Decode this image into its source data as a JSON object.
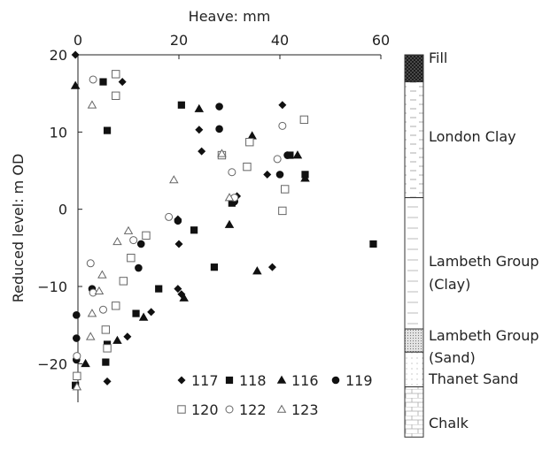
{
  "chart_data": {
    "type": "scatter",
    "xlabel": "Heave: mm",
    "ylabel": "Reduced level: m OD",
    "xlim": [
      0,
      60
    ],
    "ylim": [
      -25,
      20
    ],
    "x_ticks": [
      0,
      20,
      40,
      60
    ],
    "y_ticks": [
      20,
      10,
      0,
      -10,
      -20
    ],
    "x_tick_labels": [
      "0",
      "20",
      "40",
      "60"
    ],
    "y_tick_labels": [
      "20",
      "10",
      "0",
      "−10",
      "−20"
    ],
    "legend_position": "bottom-right",
    "series": [
      {
        "name": "117",
        "marker": "diamond-filled",
        "points": [
          [
            -0.5,
            20
          ],
          [
            5.8,
            -22.3
          ],
          [
            9.8,
            -16.5
          ],
          [
            14.5,
            -13.3
          ],
          [
            19.8,
            -10.3
          ],
          [
            20.5,
            -11.0
          ],
          [
            20.0,
            -4.5
          ],
          [
            19.8,
            -1.3
          ],
          [
            24.5,
            7.5
          ],
          [
            24.0,
            10.3
          ],
          [
            31.5,
            1.7
          ],
          [
            37.5,
            4.5
          ],
          [
            38.5,
            -7.5
          ],
          [
            40.5,
            13.5
          ],
          [
            8.8,
            16.5
          ]
        ]
      },
      {
        "name": "118",
        "marker": "square-filled",
        "points": [
          [
            -0.5,
            -22.8
          ],
          [
            5.5,
            -19.8
          ],
          [
            5.8,
            -17.5
          ],
          [
            5.0,
            16.5
          ],
          [
            5.8,
            10.2
          ],
          [
            11.5,
            -13.5
          ],
          [
            16.0,
            -10.3
          ],
          [
            20.5,
            13.5
          ],
          [
            23.0,
            -2.7
          ],
          [
            27.0,
            -7.5
          ],
          [
            30.5,
            0.8
          ],
          [
            42.0,
            7.0
          ],
          [
            45.0,
            4.5
          ],
          [
            58.5,
            -4.5
          ]
        ]
      },
      {
        "name": "116",
        "marker": "triangle-filled",
        "points": [
          [
            -0.5,
            16.0
          ],
          [
            1.5,
            -20.0
          ],
          [
            7.8,
            -17.0
          ],
          [
            13.0,
            -14.0
          ],
          [
            21.0,
            -11.5
          ],
          [
            24.0,
            13.0
          ],
          [
            30.0,
            -2.0
          ],
          [
            34.5,
            9.5
          ],
          [
            35.5,
            -8.0
          ],
          [
            43.5,
            7.0
          ],
          [
            45.0,
            4.0
          ]
        ]
      },
      {
        "name": "119",
        "marker": "circle-filled",
        "points": [
          [
            -0.3,
            -13.7
          ],
          [
            -0.3,
            -16.7
          ],
          [
            -0.3,
            -19.5
          ],
          [
            2.8,
            -10.3
          ],
          [
            12.0,
            -7.6
          ],
          [
            12.5,
            -4.5
          ],
          [
            19.8,
            -1.5
          ],
          [
            28.0,
            13.3
          ],
          [
            28.0,
            10.4
          ],
          [
            31.0,
            1.0
          ],
          [
            40.0,
            4.5
          ],
          [
            41.5,
            7.0
          ]
        ]
      },
      {
        "name": "120",
        "marker": "square-open",
        "points": [
          [
            -0.2,
            -21.6
          ],
          [
            5.5,
            -15.6
          ],
          [
            5.8,
            -18.0
          ],
          [
            7.5,
            -12.5
          ],
          [
            9.0,
            -9.3
          ],
          [
            10.5,
            -6.3
          ],
          [
            13.5,
            -3.4
          ],
          [
            7.5,
            17.5
          ],
          [
            7.5,
            14.7
          ],
          [
            28.5,
            7.0
          ],
          [
            33.5,
            5.5
          ],
          [
            34.0,
            8.7
          ],
          [
            40.5,
            -0.2
          ],
          [
            41.0,
            2.6
          ],
          [
            44.8,
            11.6
          ]
        ]
      },
      {
        "name": "122",
        "marker": "circle-open",
        "points": [
          [
            -0.2,
            -19.0
          ],
          [
            2.5,
            -7.0
          ],
          [
            3.0,
            -10.8
          ],
          [
            5.0,
            -13.0
          ],
          [
            11.0,
            -4.0
          ],
          [
            18.0,
            -1.0
          ],
          [
            30.5,
            4.8
          ],
          [
            31.0,
            1.5
          ],
          [
            39.5,
            6.5
          ],
          [
            40.5,
            10.8
          ],
          [
            3.0,
            16.8
          ]
        ]
      },
      {
        "name": "123",
        "marker": "triangle-open",
        "points": [
          [
            -0.2,
            -23.0
          ],
          [
            2.5,
            -16.5
          ],
          [
            2.8,
            -13.5
          ],
          [
            4.2,
            -10.6
          ],
          [
            4.8,
            -8.5
          ],
          [
            7.8,
            -4.2
          ],
          [
            10.0,
            -2.8
          ],
          [
            19.0,
            3.8
          ],
          [
            28.5,
            7.2
          ],
          [
            30.0,
            1.5
          ],
          [
            2.8,
            13.5
          ]
        ]
      }
    ],
    "strata_column": [
      {
        "label": "Fill",
        "from": 20,
        "to": 16.5,
        "pattern": "crosshatch"
      },
      {
        "label": "London Clay",
        "from": 16.5,
        "to": 1.5,
        "pattern": "dashes"
      },
      {
        "label": "Lambeth Group (Clay)",
        "from": 1.5,
        "to": -15.5,
        "pattern": "lines"
      },
      {
        "label": "Lambeth Group (Sand)",
        "from": -15.5,
        "to": -18.5,
        "pattern": "dense-dots"
      },
      {
        "label": "Thanet Sand",
        "from": -18.5,
        "to": -23,
        "pattern": "sparse-dots"
      },
      {
        "label": "Chalk",
        "from": -23,
        "to": -29.5,
        "pattern": "bricks"
      }
    ]
  }
}
